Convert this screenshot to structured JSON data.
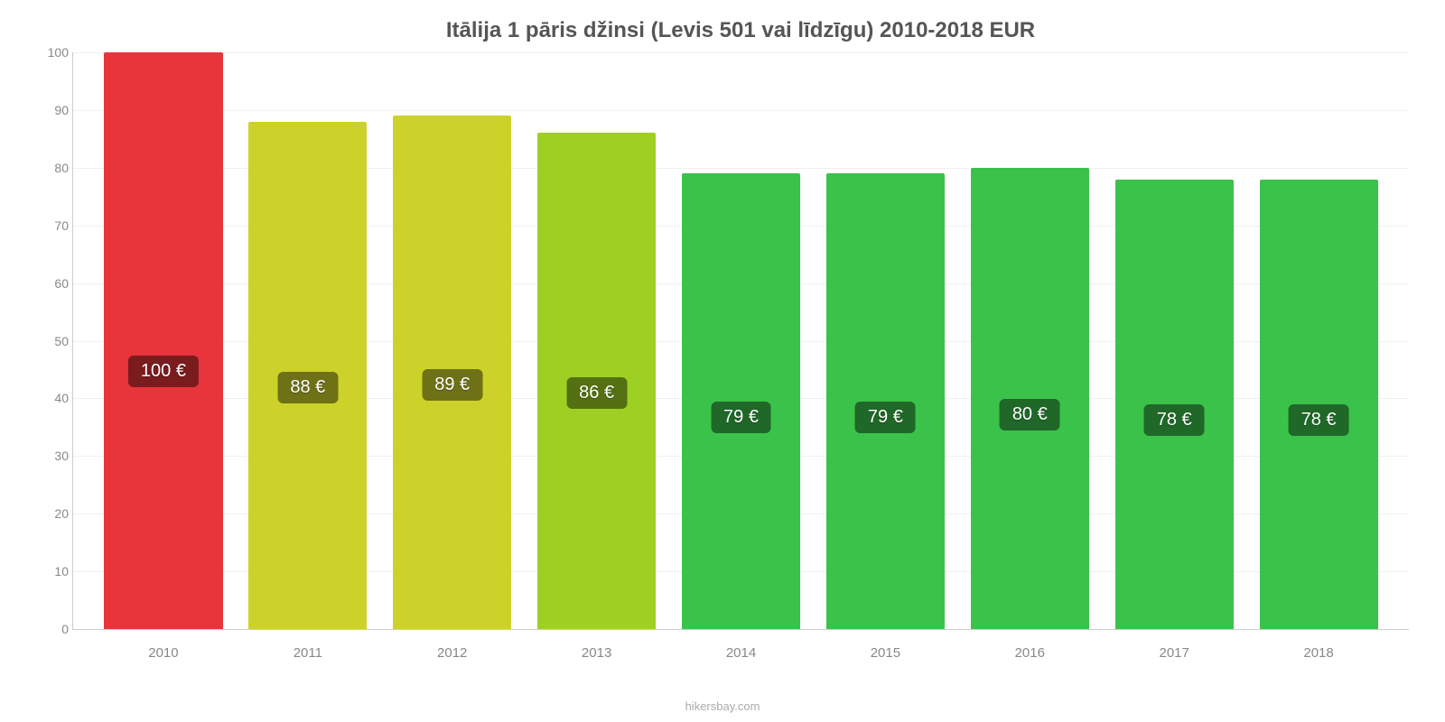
{
  "chart": {
    "type": "bar",
    "title": "Itālija 1 pāris džinsi (Levis 501 vai līdzīgu) 2010-2018 EUR",
    "title_fontsize": 24,
    "title_color": "#555555",
    "attribution": "hikersbay.com",
    "attribution_color": "#aaaaaa",
    "background_color": "#ffffff",
    "axis_color": "#cccccc",
    "grid_color": "#f0f0f0",
    "tick_color": "#888888",
    "tick_fontsize": 14,
    "ylim": [
      0,
      100
    ],
    "ytick_step": 10,
    "yticks": [
      0,
      10,
      20,
      30,
      40,
      50,
      60,
      70,
      80,
      90,
      100
    ],
    "bar_width_pct": 82,
    "categories": [
      "2010",
      "2011",
      "2012",
      "2013",
      "2014",
      "2015",
      "2016",
      "2017",
      "2018"
    ],
    "values": [
      100,
      88,
      89,
      86,
      79,
      79,
      80,
      78,
      78
    ],
    "display_labels": [
      "100 €",
      "88 €",
      "89 €",
      "86 €",
      "79 €",
      "79 €",
      "80 €",
      "78 €",
      "78 €"
    ],
    "bar_colors": [
      "#e8343b",
      "#cdd22a",
      "#cdd22a",
      "#9ed023",
      "#3bc24b",
      "#3bc24b",
      "#3bc24b",
      "#3bc24b",
      "#3bc24b"
    ],
    "label_badge_colors": [
      "#7a1b1e",
      "#6e7116",
      "#6e7116",
      "#547013",
      "#1f6828",
      "#1f6828",
      "#1f6828",
      "#1f6828",
      "#1f6828"
    ],
    "label_text_color": "#ffffff",
    "label_fontsize": 20,
    "label_y_positions_pct": [
      45,
      48,
      48,
      48,
      47,
      47,
      47,
      47,
      47
    ]
  }
}
